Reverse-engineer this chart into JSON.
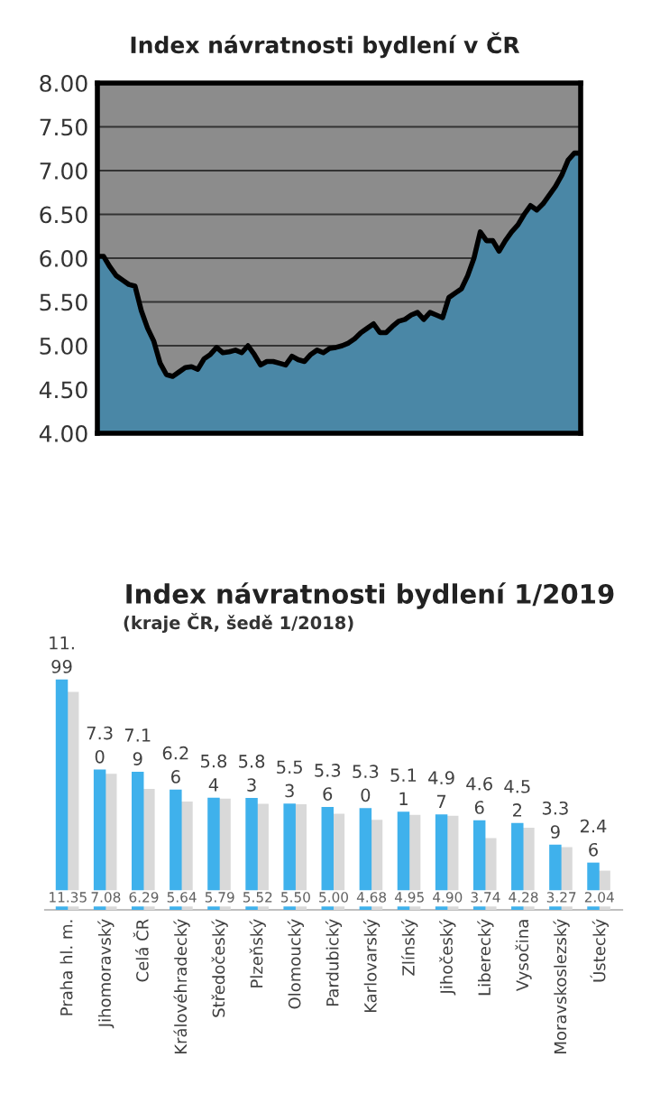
{
  "chart_data": [
    {
      "type": "area",
      "title": "Index návratnosti bydlení v ČR",
      "categories": [
        null,
        null,
        null,
        null,
        null,
        null,
        null,
        null,
        null,
        null,
        null,
        null,
        null,
        null,
        null,
        null,
        null,
        null,
        null,
        null,
        null,
        null,
        null,
        null,
        null,
        null,
        null,
        null,
        null,
        null,
        null,
        null,
        null,
        null,
        null,
        null,
        null,
        null,
        null,
        null,
        null,
        null,
        null,
        null,
        null,
        null,
        null,
        null,
        null,
        null,
        null,
        null,
        null,
        null,
        null,
        null,
        null,
        null,
        null,
        null,
        null,
        null,
        null,
        null,
        null,
        null,
        null,
        null,
        null,
        null,
        null,
        null,
        null,
        null,
        null,
        null,
        null,
        null
      ],
      "series": [
        {
          "color": "#4a87a6",
          "values": [
            6.02,
            6.02,
            5.9,
            5.8,
            5.75,
            5.7,
            5.68,
            5.4,
            5.2,
            5.05,
            4.8,
            4.67,
            4.65,
            4.7,
            4.75,
            4.76,
            4.73,
            4.85,
            4.9,
            4.98,
            4.92,
            4.93,
            4.95,
            4.92,
            5.0,
            4.9,
            4.78,
            4.82,
            4.82,
            4.8,
            4.78,
            4.88,
            4.84,
            4.82,
            4.9,
            4.95,
            4.92,
            4.97,
            4.98,
            5.0,
            5.03,
            5.08,
            5.15,
            5.2,
            5.25,
            5.15,
            5.15,
            5.22,
            5.28,
            5.3,
            5.35,
            5.38,
            5.3,
            5.38,
            5.35,
            5.32,
            5.55,
            5.6,
            5.65,
            5.8,
            6.0,
            6.3,
            6.2,
            6.2,
            6.08,
            6.2,
            6.3,
            6.38,
            6.5,
            6.6,
            6.55,
            6.62,
            6.72,
            6.82,
            6.95,
            7.12,
            7.2,
            7.2
          ]
        }
      ],
      "ylim": [
        4,
        8
      ],
      "yticks": [
        {
          "value": 4,
          "label": "4.00"
        },
        {
          "value": 4.5,
          "label": "4.50"
        },
        {
          "value": 5,
          "label": "5.00"
        },
        {
          "value": 5.5,
          "label": "5.50"
        },
        {
          "value": 6,
          "label": "6.00"
        },
        {
          "value": 6.5,
          "label": "6.50"
        },
        {
          "value": 7,
          "label": "7.00"
        },
        {
          "value": 7.5,
          "label": "7.50"
        },
        {
          "value": 8,
          "label": "8.00"
        }
      ],
      "grid": "y",
      "legend": false
    },
    {
      "type": "bar",
      "title": "Index návratnosti bydlení 1/2019",
      "subtitle": "(kraje ČR, šedě 1/2018)",
      "categories": [
        "Praha hl. m.",
        "Jihomoravský",
        "Celá ČR",
        "Královéhradecký",
        "Středočeský",
        "Plzeňský",
        "Olomoucký",
        "Pardubický",
        "Karlovarský",
        "Zlínský",
        "Jihočeský",
        "Liberecký",
        "Vysočina",
        "Moravskoslezský",
        "Ústecký"
      ],
      "series": [
        {
          "color": "#3fb1ec",
          "values": [
            11.99,
            7.3,
            7.19,
            6.26,
            5.84,
            5.83,
            5.53,
            5.36,
            5.3,
            5.11,
            4.97,
            4.66,
            4.52,
            3.39,
            2.46
          ],
          "value_labels": [
            "11.99",
            "7.30",
            "7.19",
            "6.26",
            "5.84",
            "5.83",
            "5.53",
            "5.36",
            "5.30",
            "5.11",
            "4.97",
            "4.66",
            "4.52",
            "3.39",
            "2.46"
          ]
        },
        {
          "color": "#d9d9d9",
          "values": [
            11.35,
            7.08,
            6.29,
            5.64,
            5.79,
            5.52,
            5.5,
            5.0,
            4.68,
            4.95,
            4.9,
            3.74,
            4.28,
            3.27,
            2.04
          ],
          "value_labels": [
            "11.35",
            "7.08",
            "6.29",
            "5.64",
            "5.79",
            "5.52",
            "5.50",
            "5.00",
            "4.68",
            "4.95",
            "4.90",
            "3.74",
            "4.28",
            "3.27",
            "2.04"
          ]
        }
      ],
      "grid": false,
      "legend": false
    }
  ]
}
